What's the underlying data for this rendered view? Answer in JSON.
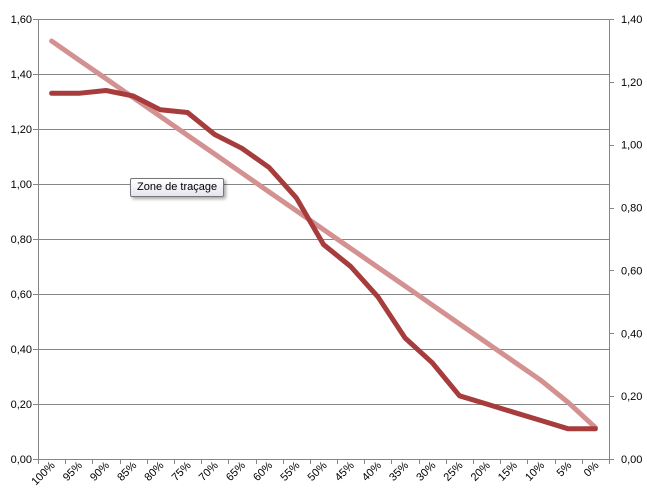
{
  "chart_data": {
    "type": "line",
    "categories": [
      "100%",
      "95%",
      "90%",
      "85%",
      "80%",
      "75%",
      "70%",
      "65%",
      "60%",
      "55%",
      "50%",
      "45%",
      "40%",
      "35%",
      "30%",
      "25%",
      "20%",
      "15%",
      "10%",
      "5%",
      "0%"
    ],
    "left_axis": {
      "ylim": [
        0,
        1.6
      ],
      "ticks": [
        "0,00",
        "0,20",
        "0,40",
        "0,60",
        "0,80",
        "1,00",
        "1,20",
        "1,40",
        "1,60"
      ]
    },
    "right_axis": {
      "ylim": [
        0,
        1.4
      ],
      "ticks": [
        "0,00",
        "0,20",
        "0,40",
        "0,60",
        "0,80",
        "1,00",
        "1,20",
        "1,40"
      ]
    },
    "grid": true,
    "series": [
      {
        "axis": "left",
        "color": "#a63c3c",
        "values": [
          1.33,
          1.33,
          1.34,
          1.32,
          1.27,
          1.26,
          1.18,
          1.13,
          1.06,
          0.95,
          0.78,
          0.7,
          0.59,
          0.44,
          0.35,
          0.23,
          0.2,
          0.17,
          0.14,
          0.11,
          0.11
        ]
      },
      {
        "axis": "right",
        "color": "#d49191",
        "values": [
          1.33,
          1.27,
          1.21,
          1.15,
          1.09,
          1.03,
          0.97,
          0.91,
          0.85,
          0.79,
          0.73,
          0.67,
          0.61,
          0.55,
          0.49,
          0.43,
          0.37,
          0.31,
          0.25,
          0.18,
          0.1
        ]
      }
    ]
  },
  "tooltip": {
    "text": "Zone de traçage"
  }
}
